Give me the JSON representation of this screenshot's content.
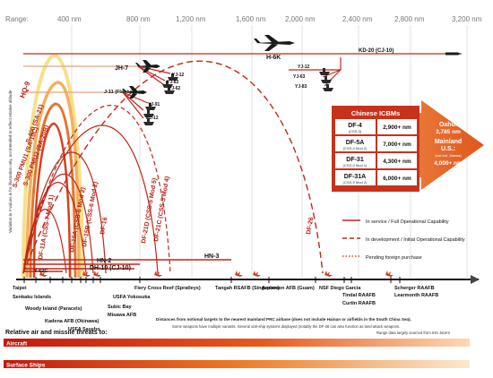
{
  "range_axis": {
    "label": "Range:",
    "ticks": [
      "400 nm",
      "800 nm",
      "1,200 nm",
      "1,600 nm",
      "2,000 nm",
      "2,400 nm",
      "2,800 nm",
      "3,200 nm"
    ]
  },
  "side_note": "Variation in Y-values is for illustration only, not intended to reflect relative altitude",
  "weapons": {
    "missiles_vertical": [
      "HQ-9",
      "S-400 (SA-21)",
      "S-300 PMU1 (SA-10C)",
      "S-300 PMU2 (SA-20B)"
    ],
    "short_range": [
      "DF-11A (CSS-7 Mod 1)",
      "DF-15A (CSS-6 Mod 2)",
      "DF-15B (CSS-6 Mod 2)",
      "DF-16",
      "DF-21C (CSS-5 Mod 4)",
      "DF-21D (CSS-5 Mod 5)",
      "DF-26"
    ],
    "aircraft": [
      "JH-7",
      "J-11 (Flanker)",
      "H-6K",
      "KD-20 (CJ-10)"
    ],
    "ship_missiles": [
      "YJ-12",
      "YJ-83",
      "YJ-62",
      "YJ-91",
      "PL-12",
      "YJ-12",
      "YJ-63",
      "YJ-83"
    ],
    "low_level": [
      "Y-62C",
      "HN-2",
      "DH-10 (CJ-10)",
      "HN-3"
    ]
  },
  "icbm_table": {
    "title": "Chinese ICBMs",
    "rows": [
      {
        "name": "DF-4",
        "variant": "(CSS-3)",
        "range": "2,900+ nm"
      },
      {
        "name": "DF-5A",
        "variant": "(CSS-4 Mod 2)",
        "range": "7,000+ nm"
      },
      {
        "name": "DF-31",
        "variant": "(CSS-9 Mod 1)",
        "range": "4,300+ nm"
      },
      {
        "name": "DF-31A",
        "variant": "(CSS-9 Mod 2)",
        "range": "6,000+ nm"
      }
    ],
    "arrow": {
      "t1": "Oahu:",
      "t2": "3,785 nm",
      "t3": "Mainland",
      "t4": "U.S.:",
      "t5": "(not incl. Alaska)",
      "t6": "4,000+ nm"
    }
  },
  "legend": {
    "items": [
      "In service / Full Operational Capability",
      "In development / Initial Operational Capability",
      "Pending foreign purchase"
    ]
  },
  "targets": {
    "above": [
      "Taipei",
      "Fiery Cross Reef (Spratleys)",
      "Tangah RSAFB (Singapore)",
      "Andersen AFB (Guam)",
      "NSF Diego Garcia",
      "Scherger RAAFB"
    ],
    "below": [
      "Senkaku Islands",
      "Woody Island (Paracels)",
      "Kadena AFB (Okinawa)",
      "USFA Sasebo",
      "Subic Bay",
      "Misawa AFB",
      "USFA Yokosuka",
      "Tindal RAAFB",
      "Curtin RAAFB",
      "Learmonth RAAFB"
    ]
  },
  "footer": {
    "note1": "Distances from notional targets to the nearest mainland PRC airbase (does not include Hainan or airfields in the South China Sea).",
    "note2": "Some weapons have multiple variants. Several anti-ship systems displayed (notably the DF-26 can also function as land-attack weapons.",
    "note3": "Range data largely sourced from IHS Jane's",
    "threats_title": "Relative air and missile threats to:",
    "bars": [
      "Aircraft",
      "Surface Ships"
    ]
  },
  "colors": {
    "red": "#c0271a",
    "dark": "#1a1a1a",
    "orange": "#ee7d1f",
    "table_red": "#c8321c"
  }
}
